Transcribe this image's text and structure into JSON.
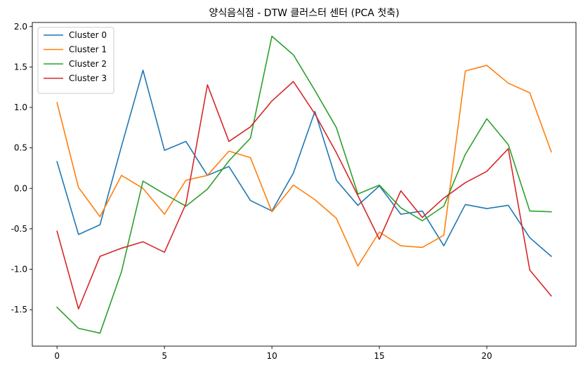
{
  "chart_data": {
    "type": "line",
    "title": "양식음식점 - DTW 클러스터 센터 (PCA 첫축)",
    "xlabel": "",
    "ylabel": "",
    "x": [
      0,
      1,
      2,
      3,
      4,
      5,
      6,
      7,
      8,
      9,
      10,
      11,
      12,
      13,
      14,
      15,
      16,
      17,
      18,
      19,
      20,
      21,
      22,
      23
    ],
    "xlim": [
      -1.15,
      24.15
    ],
    "ylim": [
      -1.95,
      2.05
    ],
    "x_ticks": [
      0,
      5,
      10,
      15,
      20
    ],
    "x_tick_labels": [
      "0",
      "5",
      "10",
      "15",
      "20"
    ],
    "y_ticks": [
      2.0,
      1.5,
      1.0,
      0.5,
      0.0,
      -0.5,
      -1.0,
      -1.5
    ],
    "y_tick_labels": [
      "2.0",
      "1.5",
      "1.0",
      "0.5",
      "0.0",
      "-0.5",
      "-1.0",
      "-1.5"
    ],
    "grid": false,
    "legend_position": "top-left",
    "series": [
      {
        "name": "Cluster 0",
        "color": "#1f77b4",
        "values": [
          0.33,
          -0.57,
          -0.45,
          0.52,
          1.46,
          0.47,
          0.58,
          0.16,
          0.27,
          -0.15,
          -0.28,
          0.19,
          0.95,
          0.1,
          -0.21,
          0.03,
          -0.32,
          -0.28,
          -0.71,
          -0.2,
          -0.25,
          -0.21,
          -0.61,
          -0.84
        ]
      },
      {
        "name": "Cluster 1",
        "color": "#ff7f0e",
        "values": [
          1.06,
          0.01,
          -0.35,
          0.16,
          0.0,
          -0.32,
          0.1,
          0.16,
          0.46,
          0.38,
          -0.29,
          0.04,
          -0.14,
          -0.37,
          -0.96,
          -0.54,
          -0.71,
          -0.73,
          -0.58,
          1.45,
          1.52,
          1.3,
          1.18,
          0.45
        ]
      },
      {
        "name": "Cluster 2",
        "color": "#2ca02c",
        "values": [
          -1.47,
          -1.73,
          -1.79,
          -1.03,
          0.09,
          -0.07,
          -0.22,
          -0.01,
          0.34,
          0.62,
          1.88,
          1.65,
          1.21,
          0.75,
          -0.07,
          0.04,
          -0.24,
          -0.4,
          -0.22,
          0.42,
          0.86,
          0.54,
          -0.28,
          -0.29
        ]
      },
      {
        "name": "Cluster 3",
        "color": "#d62728",
        "values": [
          -0.53,
          -1.49,
          -0.84,
          -0.74,
          -0.66,
          -0.79,
          -0.19,
          1.28,
          0.58,
          0.76,
          1.08,
          1.32,
          0.92,
          0.44,
          -0.09,
          -0.63,
          -0.03,
          -0.36,
          -0.12,
          0.07,
          0.21,
          0.49,
          -1.01,
          -1.33
        ]
      }
    ]
  }
}
